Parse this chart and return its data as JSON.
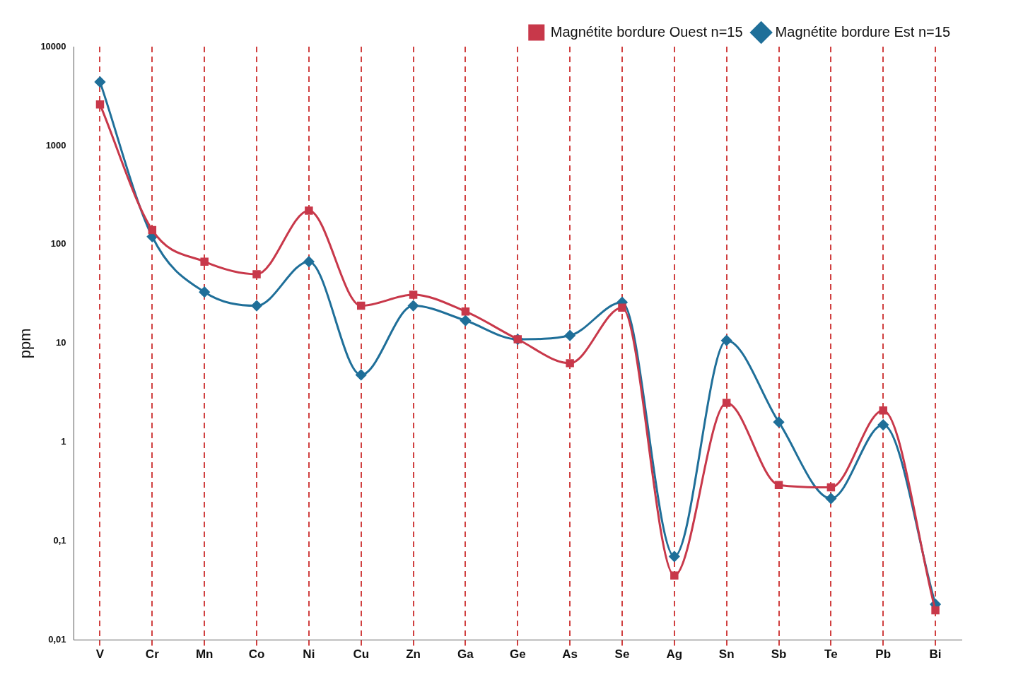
{
  "chart_data": {
    "type": "line",
    "ylabel": "ppm",
    "log": "y",
    "grid": "x",
    "legend": "top right",
    "categories": [
      "V",
      "Cr",
      "Mn",
      "Co",
      "Ni",
      "Cu",
      "Zn",
      "Ga",
      "Ge",
      "As",
      "Se",
      "Ag",
      "Sn",
      "Sb",
      "Te",
      "Pb",
      "Bi"
    ],
    "ylim": [
      0.01,
      10000
    ],
    "yticks": [
      {
        "value": 0.01,
        "label": "0,01"
      },
      {
        "value": 0.1,
        "label": "0,1"
      },
      1,
      10,
      100,
      1000,
      10000
    ],
    "series": [
      {
        "name": "Magnétite bordure Est n=15",
        "color": "#1f6f99",
        "marker": "diamond",
        "values": [
          4400,
          120,
          33,
          24,
          67,
          4.8,
          24,
          17,
          11,
          12,
          26,
          0.07,
          10.7,
          1.6,
          0.27,
          1.5,
          0.023
        ]
      },
      {
        "name": "Magnétite bordure Ouest n=15",
        "color": "#c8384a",
        "marker": "square",
        "values": [
          2600,
          140,
          67,
          50,
          220,
          24,
          31,
          21,
          11,
          6.3,
          23,
          0.045,
          2.5,
          0.37,
          0.35,
          2.1,
          0.02
        ]
      }
    ]
  }
}
